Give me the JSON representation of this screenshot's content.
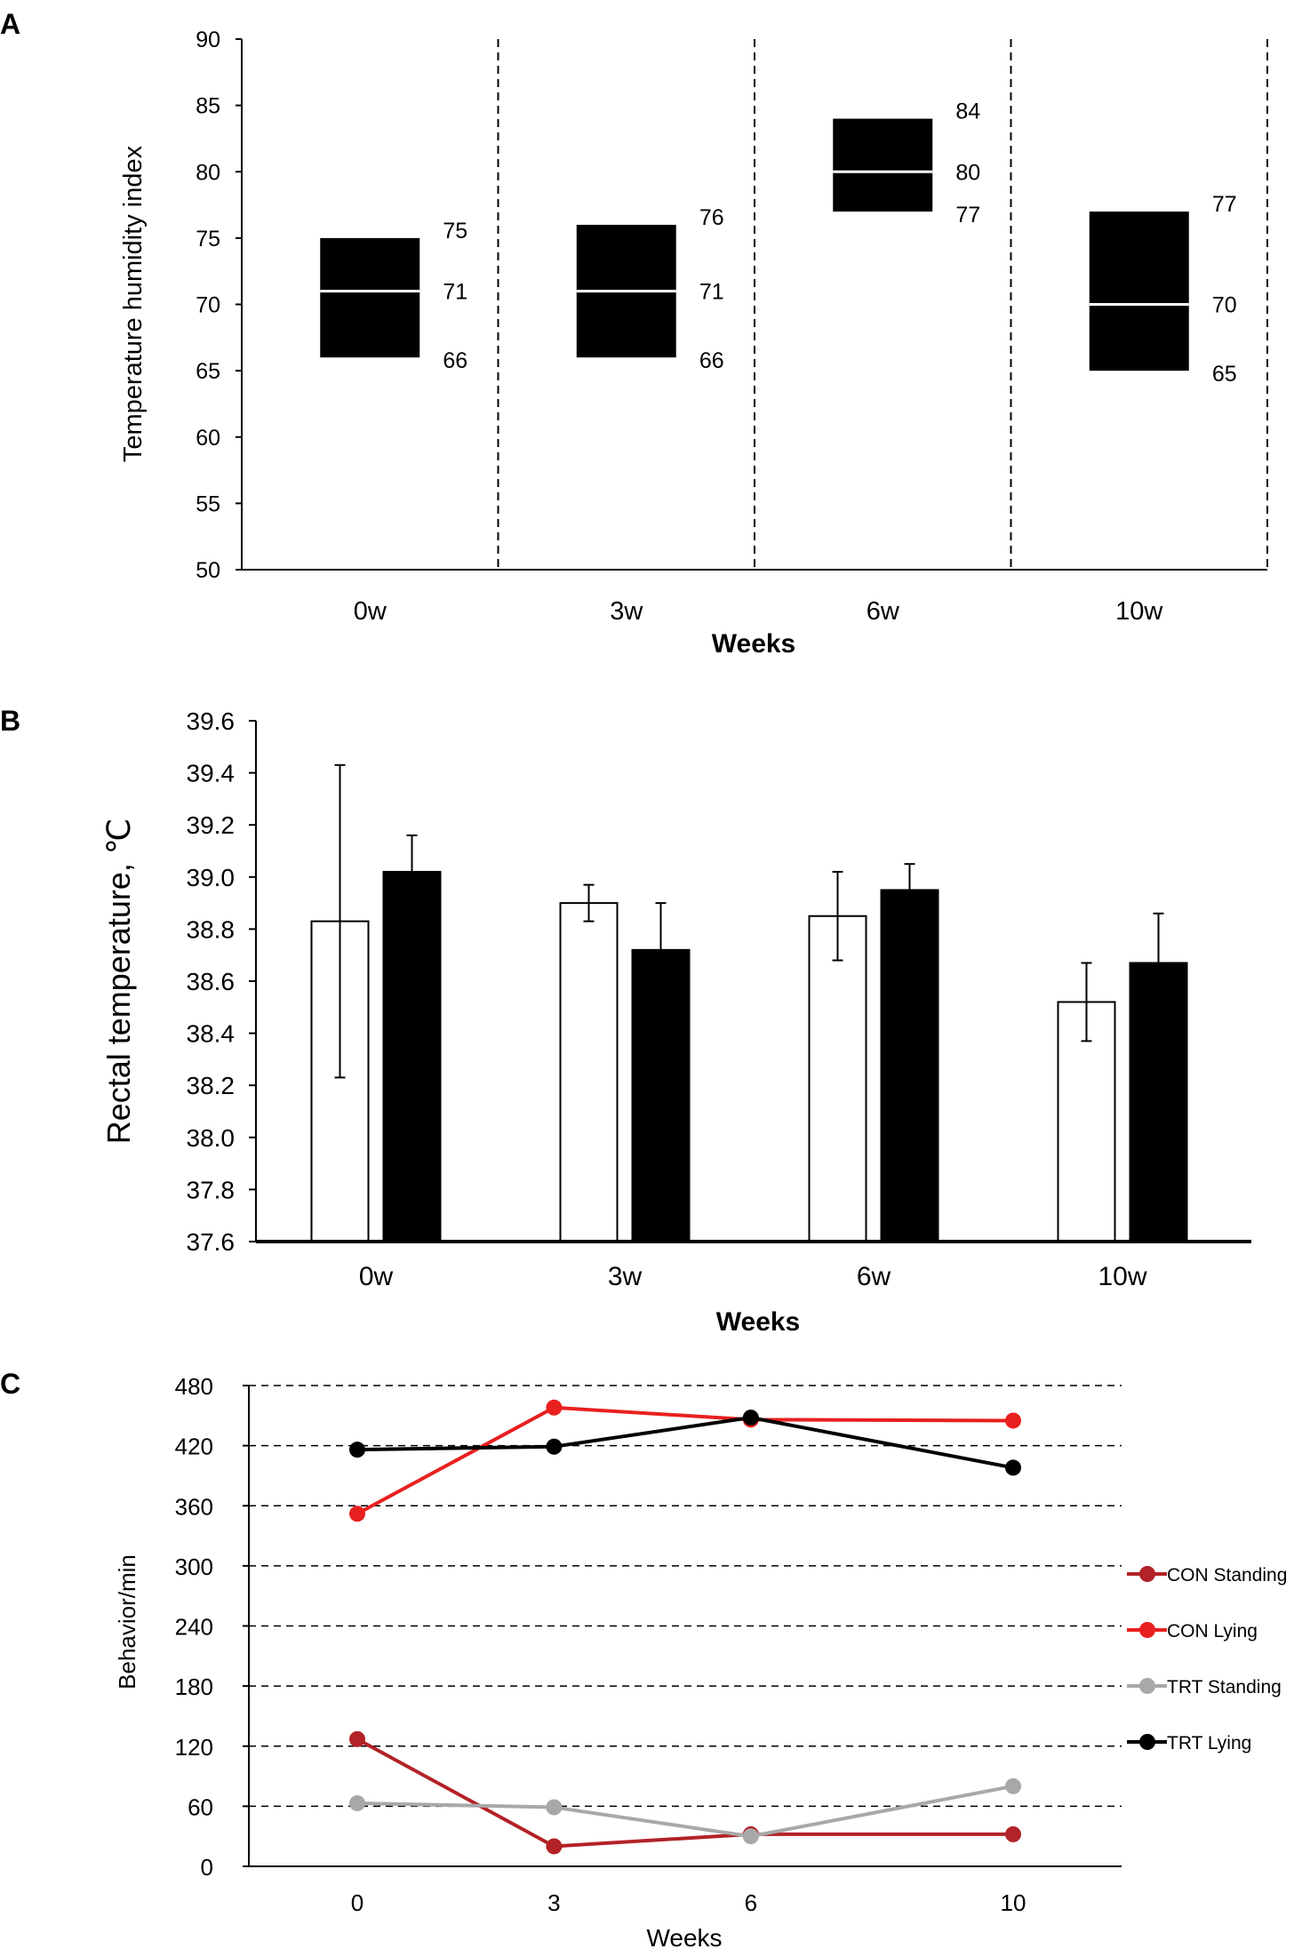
{
  "panels": {
    "a": {
      "letter": "A"
    },
    "b": {
      "letter": "B"
    },
    "c": {
      "letter": "C"
    }
  },
  "chart_data": [
    {
      "panel": "A",
      "type": "box",
      "xlabel": "Weeks",
      "ylabel": "Temperature humidity index",
      "ylim": [
        50,
        90
      ],
      "yticks": [
        50,
        55,
        60,
        65,
        70,
        75,
        80,
        85,
        90
      ],
      "categories": [
        "0w",
        "3w",
        "6w",
        "10w"
      ],
      "boxes": [
        {
          "category": "0w",
          "min": 66,
          "median": 71,
          "max": 75
        },
        {
          "category": "3w",
          "min": 66,
          "median": 71,
          "max": 76
        },
        {
          "category": "6w",
          "min": 77,
          "median": 80,
          "max": 84
        },
        {
          "category": "10w",
          "min": 65,
          "median": 70,
          "max": 77
        }
      ],
      "grid": false,
      "separators": "dashed vertical between categories"
    },
    {
      "panel": "B",
      "type": "bar",
      "xlabel": "Weeks",
      "ylabel": "Rectal temperature, ℃",
      "ylim": [
        37.6,
        39.6
      ],
      "yticks": [
        37.6,
        37.8,
        38.0,
        38.2,
        38.4,
        38.6,
        38.8,
        39.0,
        39.2,
        39.4,
        39.6
      ],
      "categories": [
        "0w",
        "3w",
        "6w",
        "10w"
      ],
      "series": [
        {
          "color": "#ffffff",
          "values": [
            38.83,
            38.9,
            38.85,
            38.52
          ],
          "errors": [
            0.6,
            0.07,
            0.17,
            0.15
          ]
        },
        {
          "color": "#000000",
          "values": [
            39.02,
            38.72,
            38.95,
            38.67
          ],
          "errors": [
            0.14,
            0.18,
            0.1,
            0.19
          ]
        }
      ],
      "grid": false,
      "legend": "none"
    },
    {
      "panel": "C",
      "type": "line",
      "xlabel": "Weeks",
      "ylabel": "Behavior/min",
      "ylim": [
        0,
        480
      ],
      "yticks": [
        0,
        60,
        120,
        180,
        240,
        300,
        360,
        420,
        480
      ],
      "x": [
        "0",
        "3",
        "6",
        "10"
      ],
      "series": [
        {
          "name": "CON Standing",
          "color": "#b22227",
          "values": [
            127,
            20,
            32,
            32
          ]
        },
        {
          "name": "CON Lying",
          "color": "#e8201f",
          "values": [
            352,
            458,
            446,
            445
          ]
        },
        {
          "name": "TRT Standing",
          "color": "#a8a8a8",
          "values": [
            63,
            59,
            30,
            80
          ]
        },
        {
          "name": "TRT Lying",
          "color": "#000000",
          "values": [
            416,
            419,
            448,
            398
          ]
        }
      ],
      "grid": "dashed horizontal",
      "legend": "right"
    }
  ]
}
